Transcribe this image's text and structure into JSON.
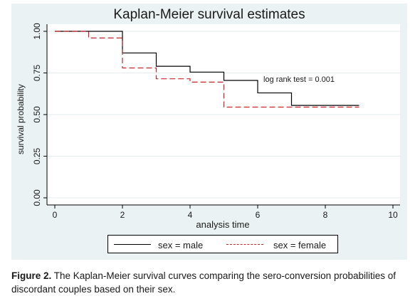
{
  "chart_data": {
    "type": "line",
    "title": "Kaplan-Meier survival estimates",
    "xlabel": "analysis time",
    "ylabel": "survival probability",
    "xlim": [
      0,
      10
    ],
    "ylim": [
      0,
      1
    ],
    "x_ticks": [
      "0",
      "2",
      "4",
      "6",
      "8",
      "10"
    ],
    "y_ticks": [
      "0.00",
      "0.25",
      "0.50",
      "0.75",
      "1.00"
    ],
    "grid": true,
    "legend_position": "bottom",
    "annotation": "log rank test = 0.001",
    "series": [
      {
        "name": "sex = male",
        "color": "#000000",
        "style": "solid",
        "steps": [
          [
            0,
            1.0
          ],
          [
            2,
            0.87
          ],
          [
            3,
            0.79
          ],
          [
            4,
            0.755
          ],
          [
            5,
            0.705
          ],
          [
            6,
            0.63
          ],
          [
            7,
            0.555
          ],
          [
            9,
            0.555
          ]
        ]
      },
      {
        "name": "sex = female",
        "color": "#c0282d",
        "style": "dashed",
        "steps": [
          [
            0,
            1.0
          ],
          [
            1,
            0.96
          ],
          [
            2,
            0.78
          ],
          [
            3,
            0.715
          ],
          [
            4,
            0.695
          ],
          [
            5,
            0.545
          ],
          [
            9,
            0.545
          ]
        ]
      }
    ]
  },
  "caption": {
    "label": "Figure 2.",
    "text": " The Kaplan-Meier survival curves comparing the sero-conversion probabilities of discordant couples based on their sex."
  }
}
